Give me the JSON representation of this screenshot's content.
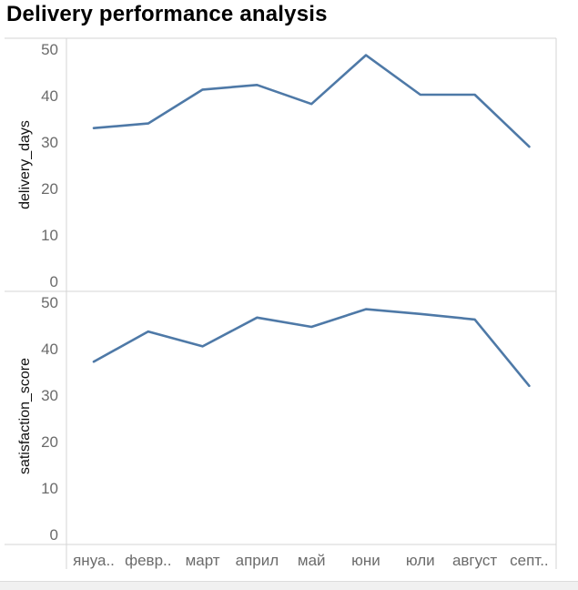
{
  "title": "Delivery performance analysis",
  "colors": {
    "line": "#4e79a7",
    "grid": "#d4d4d4",
    "tick": "#6b6b6b"
  },
  "chart_data": {
    "type": "line",
    "categories": [
      "януа..",
      "февр..",
      "март",
      "април",
      "май",
      "юни",
      "юли",
      "август",
      "септ.."
    ],
    "panels": [
      {
        "name": "delivery_days",
        "ylabel": "delivery_days",
        "ylim": [
          0,
          50
        ],
        "yticks": [
          0,
          10,
          20,
          30,
          40,
          50
        ],
        "values": [
          33,
          34,
          41.3,
          42.3,
          38.2,
          48.7,
          40.2,
          40.2,
          29
        ]
      },
      {
        "name": "satisfaction_score",
        "ylabel": "satisfaction_score",
        "ylim": [
          0,
          50
        ],
        "yticks": [
          0,
          10,
          20,
          30,
          40,
          50
        ],
        "values": [
          37.2,
          43.7,
          40.5,
          46.7,
          44.7,
          48.5,
          47.5,
          46.3,
          32
        ]
      }
    ]
  }
}
